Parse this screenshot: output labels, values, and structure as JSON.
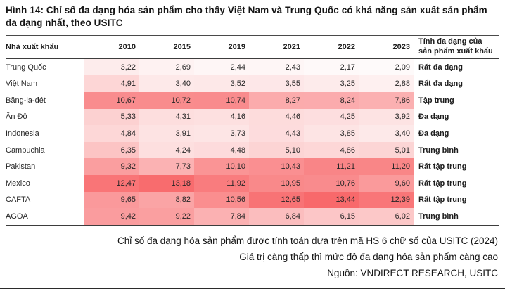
{
  "title": "Hình 14: Chỉ số đa dạng hóa sản phẩm cho thấy Việt Nam và Trung Quốc có khả năng sản xuất sản phẩm đa dạng nhất, theo USITC",
  "chart_data": {
    "type": "heatmap",
    "title": "Chỉ số đa dạng hóa sản phẩm theo USITC",
    "exporter_header": "Nhà xuất khẩu",
    "diversity_header": "Tính đa dạng của sản phẩm xuất khẩu",
    "columns": [
      "2010",
      "2015",
      "2019",
      "2021",
      "2022",
      "2023"
    ],
    "rows": [
      "Trung Quốc",
      "Việt Nam",
      "Băng-la-đét",
      "Ấn Độ",
      "Indonesia",
      "Campuchia",
      "Pakistan",
      "Mexico",
      "CAFTA",
      "AGOA"
    ],
    "values": [
      [
        3.22,
        2.69,
        2.44,
        2.43,
        2.17,
        2.09
      ],
      [
        4.91,
        3.4,
        3.52,
        3.55,
        3.25,
        2.88
      ],
      [
        10.67,
        10.72,
        10.74,
        8.27,
        8.24,
        7.86
      ],
      [
        5.33,
        4.31,
        4.16,
        4.46,
        4.25,
        3.92
      ],
      [
        4.84,
        3.91,
        3.73,
        4.43,
        3.85,
        3.4
      ],
      [
        6.35,
        4.24,
        4.48,
        5.1,
        4.86,
        5.01
      ],
      [
        9.32,
        7.73,
        10.1,
        10.43,
        11.21,
        11.2
      ],
      [
        12.47,
        13.18,
        11.92,
        10.95,
        10.76,
        9.6
      ],
      [
        9.65,
        8.82,
        10.56,
        12.65,
        13.44,
        12.39
      ],
      [
        9.42,
        9.22,
        7.84,
        6.84,
        6.15,
        6.02
      ]
    ],
    "row_labels": [
      "Rất đa dạng",
      "Rất đa dạng",
      "Tập trung",
      "Đa dạng",
      "Đa dạng",
      "Trung bình",
      "Rất tập trung",
      "Rất tập trung",
      "Rất tập trung",
      "Trung bình"
    ],
    "decimal_separator": ",",
    "color_scale": {
      "min_value": 2.09,
      "max_value": 13.44,
      "low_color": "#FEFAFA",
      "high_color": "#F8696B"
    }
  },
  "footnotes": [
    "Chỉ số đa dạng hóa sản phẩm được tính toán dựa trên mã HS 6 chữ số của USITC (2024)",
    "Giá trị càng thấp thì mức độ đa dạng hóa sản phẩm càng cao",
    "Nguồn: VNDIRECT RESEARCH, USITC"
  ]
}
